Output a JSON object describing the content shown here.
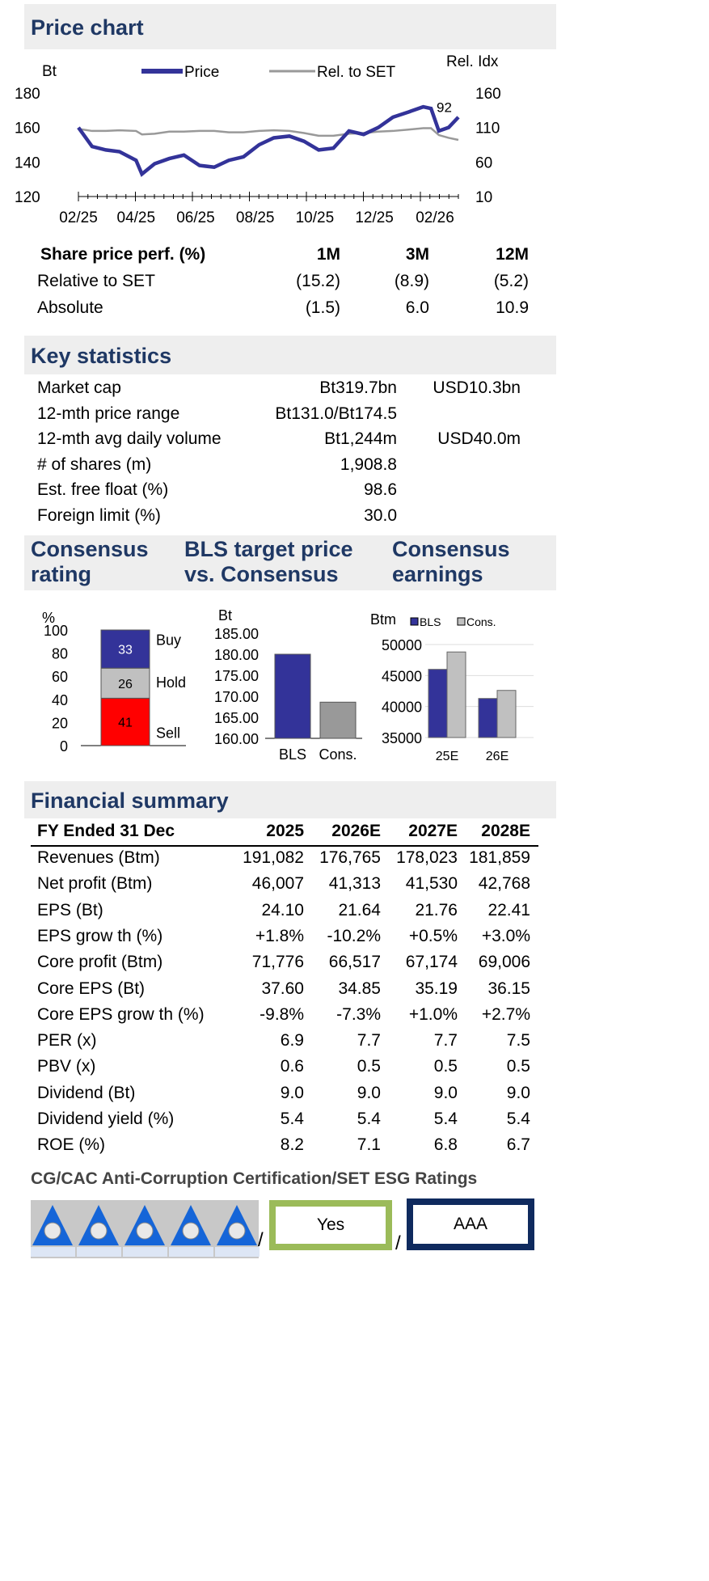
{
  "price_chart": {
    "title": "Price chart",
    "left_unit": "Bt",
    "right_unit": "Rel. Idx",
    "legend": [
      "Price",
      "Rel. to SET"
    ],
    "annotation": "92"
  },
  "perf": {
    "header": [
      "Share price perf. (%)",
      "1M",
      "3M",
      "12M"
    ],
    "rows": [
      [
        "Relative to SET",
        "(15.2)",
        "(8.9)",
        "(5.2)"
      ],
      [
        "Absolute",
        "(1.5)",
        "6.0",
        "10.9"
      ]
    ]
  },
  "key_stats": {
    "title": "Key statistics",
    "rows": [
      [
        "Market cap",
        "Bt319.7bn",
        "USD10.3bn"
      ],
      [
        "12-mth price range",
        "Bt131.0/Bt174.5",
        ""
      ],
      [
        "12-mth avg daily volume",
        "Bt1,244m",
        "USD40.0m"
      ],
      [
        "# of shares (m)",
        "1,908.8",
        ""
      ],
      [
        "Est. free float (%)",
        "98.6",
        ""
      ],
      [
        "Foreign limit (%)",
        "30.0",
        ""
      ]
    ]
  },
  "consensus_headers": {
    "rating": [
      "Consensus",
      "rating"
    ],
    "target": [
      "BLS target price",
      "vs. Consensus"
    ],
    "earnings": [
      "Consensus",
      "earnings"
    ]
  },
  "financial": {
    "title": "Financial summary",
    "header": [
      "FY Ended 31 Dec",
      "2025",
      "2026E",
      "2027E",
      "2028E"
    ],
    "rows": [
      [
        "Revenues (Btm)",
        "191,082",
        "176,765",
        "178,023",
        "181,859"
      ],
      [
        "Net profit (Btm)",
        "46,007",
        "41,313",
        "41,530",
        "42,768"
      ],
      [
        "EPS (Bt)",
        "24.10",
        "21.64",
        "21.76",
        "22.41"
      ],
      [
        "EPS grow th (%)",
        "+1.8%",
        "-10.2%",
        "+0.5%",
        "+3.0%"
      ],
      [
        "Core profit (Btm)",
        "71,776",
        "66,517",
        "67,174",
        "69,006"
      ],
      [
        "Core EPS (Bt)",
        "37.60",
        "34.85",
        "35.19",
        "36.15"
      ],
      [
        "Core EPS grow th (%)",
        "-9.8%",
        "-7.3%",
        "+1.0%",
        "+2.7%"
      ],
      [
        "PER (x)",
        "6.9",
        "7.7",
        "7.7",
        "7.5"
      ],
      [
        "PBV (x)",
        "0.6",
        "0.5",
        "0.5",
        "0.5"
      ],
      [
        "Dividend (Bt)",
        "9.0",
        "9.0",
        "9.0",
        "9.0"
      ],
      [
        "Dividend yield (%)",
        "5.4",
        "5.4",
        "5.4",
        "5.4"
      ],
      [
        "ROE (%)",
        "8.2",
        "7.1",
        "6.8",
        "6.7"
      ]
    ]
  },
  "ratings": {
    "title": "CG/CAC Anti-Corruption Certification/SET ESG Ratings",
    "cg_stars": 5,
    "cac": "Yes",
    "esg": "AAA",
    "separator": "/",
    "colors": {
      "cac_border": "#9bbb59",
      "esg_border": "#0f2a5e"
    }
  },
  "colors": {
    "header_text": "#1f3864",
    "price": "#333399",
    "rel": "#999999",
    "sell": "#ff0000",
    "hold": "#c0c0c0",
    "buy": "#333399",
    "cons": "#999999"
  },
  "chart_data": [
    {
      "type": "line",
      "title": "",
      "y_left_label": "Bt",
      "y_right_label": "Rel. Idx",
      "ylim": [
        120,
        180
      ],
      "ylim_right": [
        10,
        160
      ],
      "y_ticks": [
        "120",
        "140",
        "160",
        "180"
      ],
      "y_right_ticks": [
        "10",
        "60",
        "110",
        "160"
      ],
      "x_ticks": [
        "02/25",
        "04/25",
        "06/25",
        "08/25",
        "10/25",
        "12/25",
        "02/26"
      ],
      "x": [
        "2025-02-01",
        "2025-02-15",
        "2025-03-01",
        "2025-03-15",
        "2025-04-01",
        "2025-04-07",
        "2025-04-20",
        "2025-05-05",
        "2025-05-20",
        "2025-06-05",
        "2025-06-20",
        "2025-07-05",
        "2025-07-20",
        "2025-08-05",
        "2025-08-20",
        "2025-09-05",
        "2025-09-20",
        "2025-10-05",
        "2025-10-20",
        "2025-11-05",
        "2025-11-20",
        "2025-12-05",
        "2025-12-20",
        "2026-01-05",
        "2026-01-20",
        "2026-01-28",
        "2026-02-05",
        "2026-02-15",
        "2026-02-25"
      ],
      "series": [
        {
          "name": "Price",
          "values": [
            160,
            149,
            147,
            146,
            141,
            133,
            139,
            142,
            144,
            138,
            137,
            141,
            143,
            150,
            154,
            155,
            152,
            147,
            148,
            158,
            156,
            160,
            166,
            169,
            172,
            171,
            158,
            160,
            166
          ]
        },
        {
          "name": "Rel. to SET",
          "values": [
            108,
            105,
            105,
            106,
            105,
            100,
            101,
            104,
            104,
            105,
            105,
            103,
            103,
            105,
            106,
            105,
            102,
            98,
            98,
            101,
            102,
            104,
            105,
            107,
            109,
            109,
            99,
            95,
            92
          ]
        }
      ],
      "annotation": "92"
    },
    {
      "type": "bar",
      "stacked": true,
      "ylabel": "%",
      "ylim": [
        0,
        100
      ],
      "y_ticks": [
        "0",
        "20",
        "40",
        "60",
        "80",
        "100"
      ],
      "series": [
        {
          "name": "Sell",
          "values": [
            41
          ]
        },
        {
          "name": "Hold",
          "values": [
            26
          ]
        },
        {
          "name": "Buy",
          "values": [
            33
          ]
        }
      ]
    },
    {
      "type": "bar",
      "ylabel": "Bt",
      "ylim": [
        160,
        185
      ],
      "y_ticks": [
        "160.00",
        "165.00",
        "170.00",
        "175.00",
        "180.00",
        "185.00"
      ],
      "categories": [
        "BLS",
        "Cons."
      ],
      "values": [
        180.0,
        168.6
      ]
    },
    {
      "type": "bar",
      "ylabel": "Btm",
      "ylim": [
        35000,
        50000
      ],
      "y_ticks": [
        "35000",
        "40000",
        "45000",
        "50000"
      ],
      "categories": [
        "25E",
        "26E"
      ],
      "legend_position": "top",
      "series": [
        {
          "name": "BLS",
          "values": [
            46000,
            41300
          ]
        },
        {
          "name": "Cons.",
          "values": [
            48800,
            42600
          ]
        }
      ]
    }
  ]
}
